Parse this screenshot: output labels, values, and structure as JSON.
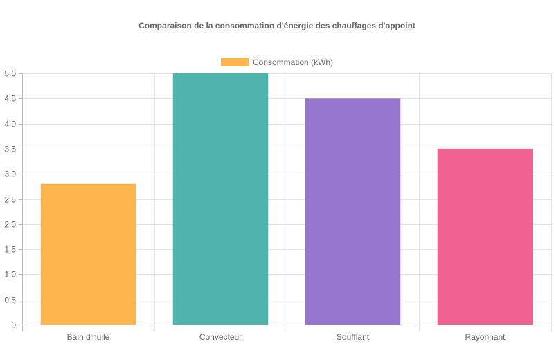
{
  "chart_data": {
    "type": "bar",
    "title": "Comparaison de la consommation d'énergie des chauffages d'appoint",
    "xlabel": "",
    "ylabel": "",
    "categories": [
      "Bain d'huile",
      "Convecteur",
      "Soufflant",
      "Rayonnant"
    ],
    "series": [
      {
        "name": "Consommation (kWh)",
        "values": [
          2.8,
          5.0,
          4.5,
          3.5
        ]
      }
    ],
    "colors": [
      "#ffb54d",
      "#4fb5ac",
      "#9575cd",
      "#f06292"
    ],
    "ylim": [
      0,
      5.0
    ],
    "yticks": [
      "0",
      "0.5",
      "1.0",
      "1.5",
      "2.0",
      "2.5",
      "3.0",
      "3.5",
      "4.0",
      "4.5",
      "5.0"
    ],
    "grid": true,
    "legend_position": "top"
  },
  "legend": {
    "label": "Consommation (kWh)",
    "color": "#ffb54d"
  }
}
